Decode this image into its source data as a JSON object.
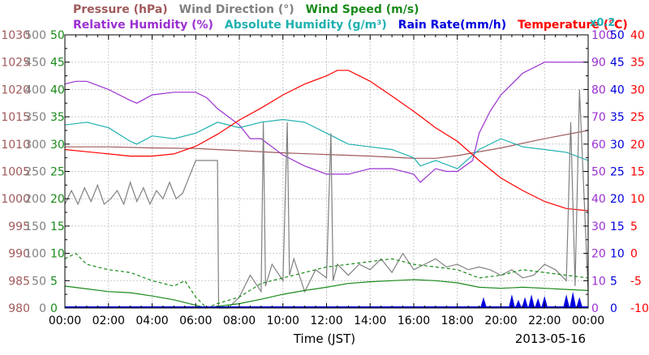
{
  "colors": {
    "pressure": "#a05a5a",
    "wind_direction": "#808080",
    "wind_speed": "#1a8a1a",
    "relative_humidity": "#9b30d0",
    "absolute_humidity": "#20b0b0",
    "rain_rate": "#0000dd",
    "temperature": "#ff0000",
    "grid": "#c8c8c8",
    "frame": "#000000"
  },
  "chart_data": {
    "type": "line",
    "xlabel": "Time (JST)",
    "date_label": "2013-05-16",
    "x_ticks": [
      "00:00",
      "02:00",
      "04:00",
      "06:00",
      "08:00",
      "10:00",
      "12:00",
      "14:00",
      "16:00",
      "18:00",
      "20:00",
      "22:00",
      "00:00"
    ],
    "x_range_hours": [
      0,
      24
    ],
    "grid": true,
    "legend": {
      "row1": [
        {
          "key": "pressure",
          "label": "Pressure (hPa)"
        },
        {
          "key": "wind_direction",
          "label": "Wind Direction (°)"
        },
        {
          "key": "wind_speed",
          "label": "Wind Speed (m/s)"
        }
      ],
      "row2": [
        {
          "key": "relative_humidity",
          "label": "Relative Humidity (%)"
        },
        {
          "key": "absolute_humidity",
          "label": "Absolute Humidity (g/m³)"
        },
        {
          "key": "rain_rate",
          "label": "Rain Rate(mm/h)"
        },
        {
          "key": "temperature",
          "label": "Temperature (°C)"
        }
      ],
      "abs_scale_note": "x0.2"
    },
    "axes": {
      "pressure": {
        "ticks": [
          "1030",
          "1025",
          "1020",
          "1015",
          "1010",
          "1005",
          "1000",
          "995",
          "990",
          "985",
          "980"
        ],
        "range": [
          980,
          1030
        ]
      },
      "wind_direction": {
        "ticks": [
          "500",
          "450",
          "400",
          "350",
          "300",
          "250",
          "200",
          "150",
          "100",
          "50",
          "0"
        ],
        "range": [
          0,
          500
        ]
      },
      "wind_speed": {
        "ticks": [
          "50",
          "45",
          "40",
          "35",
          "30",
          "25",
          "20",
          "15",
          "10",
          "5",
          "0"
        ],
        "range": [
          0,
          50
        ]
      },
      "relative_humidity": {
        "ticks": [
          "100",
          "90",
          "80",
          "70",
          "60",
          "50",
          "40",
          "30",
          "20",
          "10",
          "0"
        ],
        "range": [
          0,
          100
        ]
      },
      "rain_rate": {
        "ticks": [
          "50",
          "45",
          "40",
          "35",
          "30",
          "25",
          "20",
          "15",
          "10",
          "5",
          "0"
        ],
        "range": [
          0,
          50
        ]
      },
      "temperature": {
        "ticks": [
          "40",
          "35",
          "30",
          "25",
          "20",
          "15",
          "10",
          "5",
          "0",
          "-5",
          "-10"
        ],
        "range": [
          -10,
          40
        ]
      }
    },
    "series": [
      {
        "name": "Pressure (hPa)",
        "key": "pressure",
        "axis": "pressure",
        "x": [
          0,
          2,
          4,
          6,
          8,
          10,
          12,
          14,
          16,
          17,
          18,
          20,
          22,
          24
        ],
        "y": [
          1009.5,
          1009.5,
          1009.3,
          1009.2,
          1008.8,
          1008.4,
          1008.1,
          1007.8,
          1007.4,
          1007.4,
          1007.9,
          1009.3,
          1011.0,
          1012.5
        ]
      },
      {
        "name": "Relative Humidity (%)",
        "key": "relative_humidity",
        "axis": "relative_humidity",
        "x": [
          0,
          0.5,
          1,
          2,
          3,
          3.3,
          4,
          5,
          6,
          6.5,
          7,
          8,
          8.5,
          9,
          10,
          11,
          12,
          13,
          14,
          15,
          16,
          16.3,
          17,
          17.5,
          18,
          18.7,
          19,
          19.5,
          20,
          21,
          22,
          23,
          24
        ],
        "y": [
          82,
          83,
          83,
          80,
          76,
          75,
          78,
          79,
          79,
          77,
          73,
          67,
          62,
          62,
          56,
          52,
          49,
          49,
          51,
          51,
          49,
          46,
          51,
          50,
          50,
          54,
          64,
          72,
          78,
          86,
          90,
          90,
          90
        ]
      },
      {
        "name": "Absolute Humidity (g/m³)",
        "key": "absolute_humidity",
        "axis": "relative_humidity",
        "x": [
          0,
          1,
          2,
          3,
          3.3,
          4,
          5,
          6,
          7,
          8,
          9,
          10,
          11,
          12,
          13,
          14,
          15,
          16,
          16.3,
          17,
          18,
          19,
          20,
          21,
          22,
          23,
          24
        ],
        "y": [
          67,
          68,
          66,
          61,
          60,
          63,
          62,
          64,
          68,
          66,
          68,
          69,
          68,
          64,
          60,
          59,
          58,
          55,
          52,
          54,
          51,
          58,
          62,
          59,
          58,
          57,
          54
        ]
      },
      {
        "name": "Temperature (°C)",
        "key": "temperature",
        "axis": "temperature",
        "x": [
          0,
          1,
          2,
          3,
          4,
          5,
          6,
          7,
          8,
          9,
          10,
          11,
          12,
          12.5,
          13,
          14,
          15,
          16,
          17,
          18,
          19,
          20,
          21,
          22,
          23,
          24
        ],
        "y": [
          19,
          18.6,
          18.2,
          17.8,
          17.8,
          18.2,
          19.6,
          21.8,
          24.4,
          26.6,
          29,
          31,
          32.5,
          33.5,
          33.5,
          31.5,
          28.8,
          26,
          23,
          20.5,
          17,
          13.8,
          11.5,
          9.5,
          8.2,
          7.8
        ]
      },
      {
        "name": "Wind Direction (°)",
        "key": "wind_direction",
        "axis": "wind_direction",
        "x": [
          0,
          0.3,
          0.6,
          0.9,
          1.2,
          1.5,
          1.8,
          2.1,
          2.4,
          2.7,
          3,
          3.3,
          3.6,
          3.9,
          4.2,
          4.5,
          4.8,
          5.1,
          5.4,
          5.7,
          6,
          6.3,
          6.8,
          7,
          7.05,
          7.5,
          8,
          8.5,
          9,
          9.1,
          9.2,
          9.5,
          10,
          10.2,
          10.3,
          10.5,
          11,
          11.5,
          12,
          12.2,
          12.3,
          12.5,
          13,
          13.5,
          14,
          14.5,
          15,
          15.5,
          16,
          16.5,
          17,
          17.5,
          18,
          18.5,
          19,
          19.5,
          20,
          20.5,
          21,
          21.5,
          22,
          22.5,
          23,
          23.2,
          23.4,
          23.6,
          24
        ],
        "y": [
          190,
          215,
          190,
          220,
          195,
          225,
          190,
          200,
          215,
          190,
          230,
          195,
          220,
          190,
          215,
          200,
          230,
          200,
          210,
          240,
          270,
          270,
          270,
          270,
          0,
          0,
          20,
          60,
          30,
          340,
          40,
          80,
          50,
          340,
          60,
          90,
          30,
          70,
          55,
          320,
          50,
          80,
          60,
          80,
          70,
          90,
          65,
          100,
          70,
          80,
          90,
          75,
          80,
          70,
          75,
          70,
          60,
          70,
          55,
          60,
          80,
          70,
          50,
          340,
          40,
          400,
          30
        ]
      },
      {
        "name": "Wind Speed (m/s)",
        "key": "wind_speed",
        "axis": "wind_speed",
        "x": [
          0,
          1,
          2,
          3,
          4,
          5,
          6,
          6.5,
          7,
          8,
          9,
          10,
          11,
          12,
          13,
          14,
          15,
          16,
          17,
          18,
          19,
          20,
          21,
          22,
          23,
          24
        ],
        "y": [
          4,
          3.5,
          3,
          2.8,
          2.2,
          1.5,
          0.5,
          0,
          0.3,
          0.8,
          1.6,
          2.5,
          3.2,
          3.8,
          4.5,
          4.8,
          5,
          5.2,
          5,
          4.6,
          3.8,
          3.6,
          3.8,
          3.6,
          3.4,
          3.2
        ]
      },
      {
        "name": "Wind Speed gust",
        "key": "wind_speed",
        "axis": "wind_speed",
        "dashed": true,
        "x": [
          0,
          0.5,
          1,
          2,
          3,
          4,
          5,
          5.5,
          6,
          6.5,
          7,
          8,
          9,
          10,
          11,
          12,
          13,
          14,
          15,
          16,
          17,
          18,
          19,
          20,
          21,
          22,
          23,
          24
        ],
        "y": [
          9,
          10,
          8,
          7,
          6.5,
          5,
          4,
          5,
          2,
          0,
          0.8,
          2,
          4.5,
          5.5,
          6.5,
          7.5,
          8,
          8.5,
          9,
          8,
          7.5,
          7,
          5.5,
          6,
          7,
          6.5,
          6,
          5.5
        ]
      }
    ],
    "rain_bursts": [
      {
        "x": 19.2,
        "y": 2
      },
      {
        "x": 20.5,
        "y": 2.5
      },
      {
        "x": 20.8,
        "y": 1.5
      },
      {
        "x": 21.1,
        "y": 2
      },
      {
        "x": 21.4,
        "y": 2.5
      },
      {
        "x": 21.7,
        "y": 1.8
      },
      {
        "x": 22.0,
        "y": 2.2
      },
      {
        "x": 23.0,
        "y": 2.5
      },
      {
        "x": 23.3,
        "y": 3
      },
      {
        "x": 23.6,
        "y": 2
      }
    ]
  }
}
